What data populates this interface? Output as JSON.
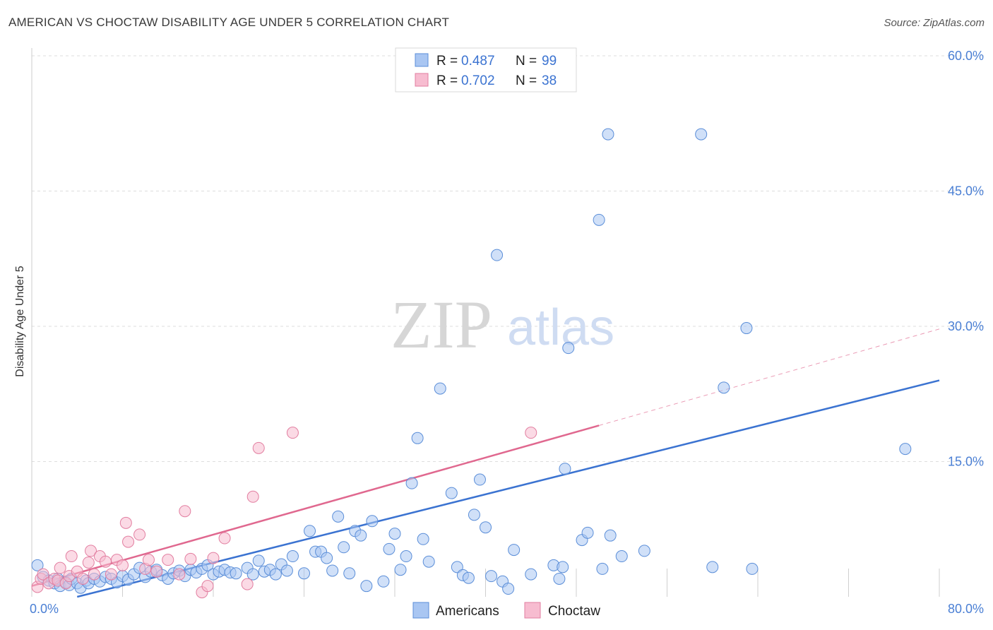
{
  "title": "AMERICAN VS CHOCTAW DISABILITY AGE UNDER 5 CORRELATION CHART",
  "source": "Source: ZipAtlas.com",
  "watermark": {
    "zip": "ZIP",
    "atlas": "atlas"
  },
  "legend": {
    "r_label": "R =",
    "n_label": "N =",
    "items": [
      {
        "name": "Americans",
        "r": "0.487",
        "n": "99",
        "fill": "#a9c6f2",
        "stroke": "#5b8ed8"
      },
      {
        "name": "Choctaw",
        "r": "0.702",
        "n": "38",
        "fill": "#f7bcd0",
        "stroke": "#e27ea0"
      }
    ]
  },
  "chart_data": {
    "type": "scatter",
    "title": "AMERICAN VS CHOCTAW DISABILITY AGE UNDER 5 CORRELATION CHART",
    "xlabel": "",
    "ylabel": "Disability Age Under 5",
    "xlim": [
      0,
      80
    ],
    "ylim": [
      0,
      60
    ],
    "x_tick_labels": [
      "0.0%",
      "80.0%"
    ],
    "y_ticks": [
      15,
      30,
      45,
      60
    ],
    "y_tick_labels": [
      "15.0%",
      "30.0%",
      "45.0%",
      "60.0%"
    ],
    "grid": true,
    "legend_position": "top-center",
    "colors": {
      "Americans": "#3b73d1",
      "Choctaw": "#e0688f"
    },
    "series": [
      {
        "name": "Americans",
        "points": [
          [
            0.5,
            3.5
          ],
          [
            1,
            2.2
          ],
          [
            1.5,
            1.8
          ],
          [
            2,
            1.5
          ],
          [
            2.3,
            2.0
          ],
          [
            2.5,
            1.2
          ],
          [
            3,
            1.6
          ],
          [
            3.3,
            1.3
          ],
          [
            3.5,
            2.0
          ],
          [
            4,
            1.5
          ],
          [
            4.3,
            1.0
          ],
          [
            4.8,
            1.8
          ],
          [
            5,
            1.5
          ],
          [
            5.5,
            2.0
          ],
          [
            6,
            1.7
          ],
          [
            6.5,
            2.2
          ],
          [
            7,
            2.0
          ],
          [
            7.5,
            1.6
          ],
          [
            8,
            2.3
          ],
          [
            8.5,
            1.9
          ],
          [
            9,
            2.5
          ],
          [
            9.5,
            3.2
          ],
          [
            10,
            2.2
          ],
          [
            10.5,
            2.8
          ],
          [
            11,
            3.0
          ],
          [
            11.5,
            2.4
          ],
          [
            12,
            2.0
          ],
          [
            12.5,
            2.6
          ],
          [
            13,
            2.9
          ],
          [
            13.5,
            2.3
          ],
          [
            14,
            3.0
          ],
          [
            14.5,
            2.7
          ],
          [
            15,
            3.1
          ],
          [
            15.5,
            3.5
          ],
          [
            16,
            2.5
          ],
          [
            16.5,
            2.8
          ],
          [
            17,
            3.0
          ],
          [
            17.5,
            2.7
          ],
          [
            18,
            2.6
          ],
          [
            19,
            3.2
          ],
          [
            19.5,
            2.5
          ],
          [
            20,
            4.0
          ],
          [
            20.5,
            2.8
          ],
          [
            21,
            3.0
          ],
          [
            21.5,
            2.5
          ],
          [
            22,
            3.6
          ],
          [
            22.5,
            2.9
          ],
          [
            23,
            4.5
          ],
          [
            24,
            2.6
          ],
          [
            24.5,
            7.3
          ],
          [
            25,
            5.0
          ],
          [
            25.5,
            5.0
          ],
          [
            26,
            4.3
          ],
          [
            26.5,
            2.9
          ],
          [
            27,
            8.9
          ],
          [
            27.5,
            5.5
          ],
          [
            28,
            2.6
          ],
          [
            28.5,
            7.3
          ],
          [
            29,
            6.8
          ],
          [
            29.5,
            1.2
          ],
          [
            30,
            8.4
          ],
          [
            31,
            1.7
          ],
          [
            31.5,
            5.3
          ],
          [
            32,
            7.0
          ],
          [
            32.5,
            3.0
          ],
          [
            33,
            4.5
          ],
          [
            33.5,
            12.6
          ],
          [
            34,
            17.6
          ],
          [
            34.5,
            6.4
          ],
          [
            35,
            3.9
          ],
          [
            36,
            23.1
          ],
          [
            37,
            11.5
          ],
          [
            37.5,
            3.3
          ],
          [
            38,
            2.4
          ],
          [
            38.5,
            2.1
          ],
          [
            39,
            9.1
          ],
          [
            39.5,
            13.0
          ],
          [
            40,
            7.7
          ],
          [
            40.5,
            2.3
          ],
          [
            41,
            37.9
          ],
          [
            41.5,
            1.7
          ],
          [
            42,
            0.9
          ],
          [
            42.5,
            5.2
          ],
          [
            44,
            2.5
          ],
          [
            46,
            3.5
          ],
          [
            46.5,
            2.0
          ],
          [
            46.8,
            3.3
          ],
          [
            47,
            14.2
          ],
          [
            47.3,
            27.6
          ],
          [
            48.5,
            6.3
          ],
          [
            49,
            7.1
          ],
          [
            50,
            41.8
          ],
          [
            50.3,
            3.1
          ],
          [
            50.8,
            51.3
          ],
          [
            51,
            6.8
          ],
          [
            52,
            4.5
          ],
          [
            54,
            5.1
          ],
          [
            59,
            51.3
          ],
          [
            60,
            3.3
          ],
          [
            61,
            23.2
          ],
          [
            63,
            29.8
          ],
          [
            63.5,
            3.1
          ],
          [
            77,
            16.4
          ]
        ],
        "trend": {
          "x_start": 4,
          "y_start": 0,
          "x_end": 80,
          "y_end": 24
        }
      },
      {
        "name": "Choctaw",
        "points": [
          [
            0.5,
            1.1
          ],
          [
            0.8,
            2.0
          ],
          [
            1,
            2.5
          ],
          [
            1.5,
            1.5
          ],
          [
            2,
            2.0
          ],
          [
            2.3,
            1.8
          ],
          [
            2.5,
            3.2
          ],
          [
            3,
            1.5
          ],
          [
            3.3,
            2.3
          ],
          [
            3.5,
            4.5
          ],
          [
            4,
            2.8
          ],
          [
            4.5,
            2.0
          ],
          [
            5,
            3.8
          ],
          [
            5.2,
            5.1
          ],
          [
            5.5,
            2.5
          ],
          [
            6,
            4.5
          ],
          [
            6.5,
            3.9
          ],
          [
            7,
            2.5
          ],
          [
            7.5,
            4.1
          ],
          [
            8,
            3.5
          ],
          [
            8.3,
            8.2
          ],
          [
            8.5,
            6.1
          ],
          [
            9.5,
            6.9
          ],
          [
            10,
            3.1
          ],
          [
            10.3,
            4.1
          ],
          [
            11,
            2.8
          ],
          [
            12,
            4.1
          ],
          [
            13,
            2.5
          ],
          [
            13.5,
            9.5
          ],
          [
            14,
            4.2
          ],
          [
            15,
            0.5
          ],
          [
            15.5,
            1.2
          ],
          [
            16,
            4.3
          ],
          [
            17,
            6.5
          ],
          [
            19,
            1.4
          ],
          [
            19.5,
            11.1
          ],
          [
            20,
            16.5
          ],
          [
            23,
            18.2
          ],
          [
            44,
            18.2
          ]
        ],
        "trend": {
          "x_start": 0,
          "y_start": 1.2,
          "x_end": 50,
          "y_end": 19.0
        },
        "trend_extension": {
          "x_start": 50,
          "y_start": 19.0,
          "x_end": 80,
          "y_end": 29.7
        }
      }
    ]
  }
}
